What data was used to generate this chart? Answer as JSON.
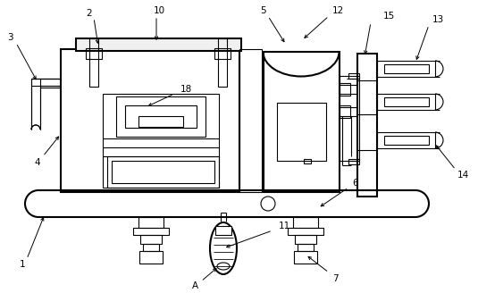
{
  "bg_color": "#ffffff",
  "line_color": "#000000",
  "lw_main": 1.5,
  "lw_thin": 0.8,
  "fig_width": 5.35,
  "fig_height": 3.28
}
